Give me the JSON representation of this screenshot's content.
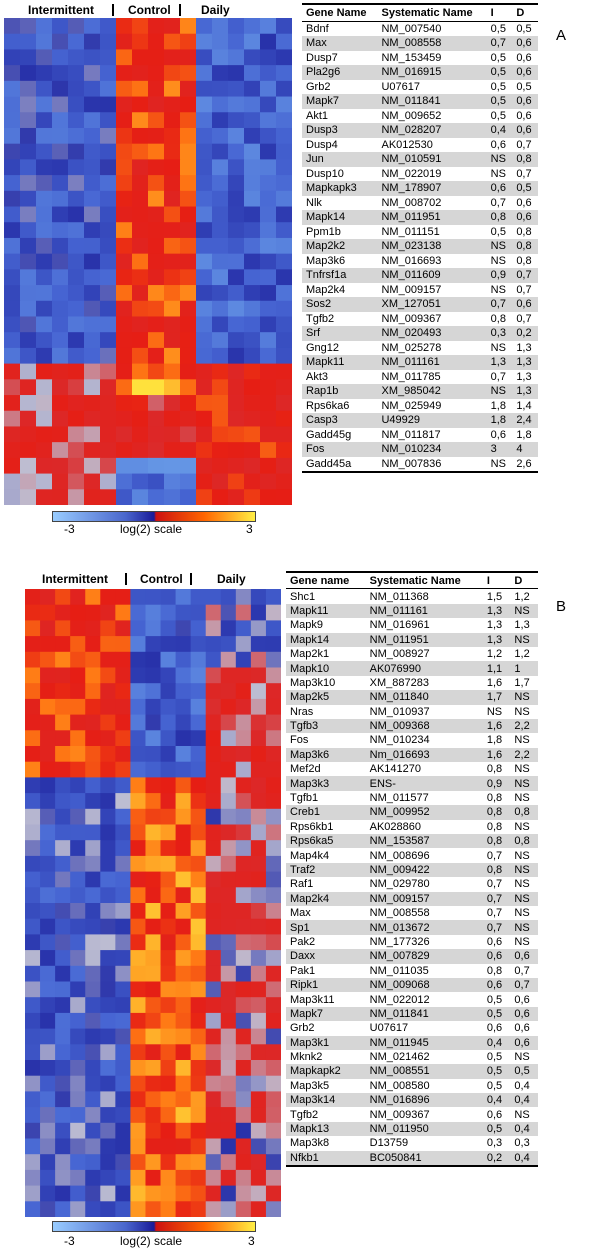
{
  "panels": [
    {
      "id": "A",
      "label": "A",
      "groups": [
        "Intermittent",
        "Control",
        "Daily"
      ],
      "scale": {
        "min": "-3",
        "max": "3",
        "title": "log(2) scale"
      },
      "headers": [
        "Gene Name",
        "Systematic Name",
        "I",
        "D"
      ],
      "rows": [
        [
          "Bdnf",
          "NM_007540",
          "0,5",
          "0,5"
        ],
        [
          "Max",
          "NM_008558",
          "0,7",
          "0,6"
        ],
        [
          "Dusp7",
          "NM_153459",
          "0,5",
          "0,6"
        ],
        [
          "Pla2g6",
          "NM_016915",
          "0,5",
          "0,6"
        ],
        [
          "Grb2",
          "U07617",
          "0,5",
          "0,5"
        ],
        [
          "Mapk7",
          "NM_011841",
          "0,5",
          "0,6"
        ],
        [
          "Akt1",
          "NM_009652",
          "0,5",
          "0,6"
        ],
        [
          "Dusp3",
          "NM_028207",
          "0,4",
          "0,6"
        ],
        [
          "Dusp4",
          "AK012530",
          "0,6",
          "0,7"
        ],
        [
          "Jun",
          "NM_010591",
          "NS",
          "0,8"
        ],
        [
          "Dusp10",
          "NM_022019",
          "NS",
          "0,7"
        ],
        [
          "Mapkapk3",
          "NM_178907",
          "0,6",
          "0,5"
        ],
        [
          "Nlk",
          "NM_008702",
          "0,7",
          "0,6"
        ],
        [
          "Mapk14",
          "NM_011951",
          "0,8",
          "0,6"
        ],
        [
          "Ppm1b",
          "NM_011151",
          "0,5",
          "0,8"
        ],
        [
          "Map2k2",
          "NM_023138",
          "NS",
          "0,8"
        ],
        [
          "Map3k6",
          "NM_016693",
          "NS",
          "0,8"
        ],
        [
          "Tnfrsf1a",
          "NM_011609",
          "0,9",
          "0,7"
        ],
        [
          "Map2k4",
          "NM_009157",
          "NS",
          "0,7"
        ],
        [
          "Sos2",
          "XM_127051",
          "0,7",
          "0,6"
        ],
        [
          "Tgfb2",
          "NM_009367",
          "0,8",
          "0,7"
        ],
        [
          "Srf",
          "NM_020493",
          "0,3",
          "0,2"
        ],
        [
          "Gng12",
          "NM_025278",
          "NS",
          "1,3"
        ],
        [
          "Mapk11",
          "NM_011161",
          "1,3",
          "1,3"
        ],
        [
          "Akt3",
          "NM_011785",
          "0,7",
          "1,3"
        ],
        [
          "Rap1b",
          "XM_985042",
          "NS",
          "1,3"
        ],
        [
          "Rps6ka6",
          "NM_025949",
          "1,8",
          "1,4"
        ],
        [
          "Casp3",
          "U49929",
          "1,8",
          "2,4"
        ],
        [
          "Gadd45g",
          "NM_011817",
          "0,6",
          "1,8"
        ],
        [
          "Fos",
          "NM_010234",
          "3",
          "4"
        ],
        [
          "Gadd45a",
          "NM_007836",
          "NS",
          "2,6"
        ]
      ]
    },
    {
      "id": "B",
      "label": "B",
      "groups": [
        "Intermittent",
        "Control",
        "Daily"
      ],
      "scale": {
        "min": "-3",
        "max": "3",
        "title": "log(2) scale"
      },
      "headers": [
        "Gene name",
        "Systematic Name",
        "I",
        "D"
      ],
      "rows": [
        [
          "Shc1",
          "NM_011368",
          "1,5",
          "1,2"
        ],
        [
          "Mapk11",
          "NM_011161",
          "1,3",
          "NS"
        ],
        [
          "Mapk9",
          "NM_016961",
          "1,3",
          "1,3"
        ],
        [
          "Mapk14",
          "NM_011951",
          "1,3",
          "NS"
        ],
        [
          "Map2k1",
          "NM_008927",
          "1,2",
          "1,2"
        ],
        [
          "Mapk10",
          "AK076990",
          "1,1",
          "1"
        ],
        [
          "Map3k10",
          "XM_887283",
          "1,6",
          "1,7"
        ],
        [
          "Map2k5",
          "NM_011840",
          "1,7",
          "NS"
        ],
        [
          "Nras",
          "NM_010937",
          "NS",
          "NS"
        ],
        [
          "Tgfb3",
          "NM_009368",
          "1,6",
          "2,2"
        ],
        [
          "Fos",
          "NM_010234",
          "1,8",
          "NS"
        ],
        [
          "Map3k6",
          "Nm_016693",
          "1,6",
          "2,2"
        ],
        [
          "Mef2d",
          "AK141270",
          "0,8",
          "NS"
        ],
        [
          "Map3k3",
          "ENS-",
          "0,9",
          "NS"
        ],
        [
          "Tgfb1",
          "NM_011577",
          "0,8",
          "NS"
        ],
        [
          "Creb1",
          "NM_009952",
          "0,8",
          "0,8"
        ],
        [
          "Rps6kb1",
          "AK028860",
          "0,8",
          "NS"
        ],
        [
          "Rps6ka5",
          "NM_153587",
          "0,8",
          "0,8"
        ],
        [
          "Map4k4",
          "NM_008696",
          "0,7",
          "NS"
        ],
        [
          "Traf2",
          "NM_009422",
          "0,8",
          "NS"
        ],
        [
          "Raf1",
          "NM_029780",
          "0,7",
          "NS"
        ],
        [
          "Map2k4",
          "NM_009157",
          "0,7",
          "NS"
        ],
        [
          "Max",
          "NM_008558",
          "0,7",
          "NS"
        ],
        [
          "Sp1",
          "NM_013672",
          "0,7",
          "NS"
        ],
        [
          "Pak2",
          "NM_177326",
          "0,6",
          "NS"
        ],
        [
          "Daxx",
          "NM_007829",
          "0,6",
          "0,6"
        ],
        [
          "Pak1",
          "NM_011035",
          "0,8",
          "0,7"
        ],
        [
          "Ripk1",
          "NM_009068",
          "0,6",
          "0,7"
        ],
        [
          "Map3k11",
          "NM_022012",
          "0,5",
          "0,6"
        ],
        [
          "Mapk7",
          "NM_011841",
          "0,5",
          "0,6"
        ],
        [
          "Grb2",
          "U07617",
          "0,6",
          "0,6"
        ],
        [
          "Map3k1",
          "NM_011945",
          "0,4",
          "0,6"
        ],
        [
          "Mknk2",
          "NM_021462",
          "0,5",
          "NS"
        ],
        [
          "Mapkapk2",
          "NM_008551",
          "0,5",
          "0,5"
        ],
        [
          "Map3k5",
          "NM_008580",
          "0,5",
          "0,4"
        ],
        [
          "Map3k14",
          "NM_016896",
          "0,4",
          "0,4"
        ],
        [
          "Tgfb2",
          "NM_009367",
          "0,6",
          "NS"
        ],
        [
          "Mapk13",
          "NM_011950",
          "0,5",
          "0,4"
        ],
        [
          "Map3k8",
          "D13759",
          "0,3",
          "0,3"
        ],
        [
          "Nfkb1",
          "BC050841",
          "0,2",
          "0,4"
        ]
      ]
    }
  ]
}
